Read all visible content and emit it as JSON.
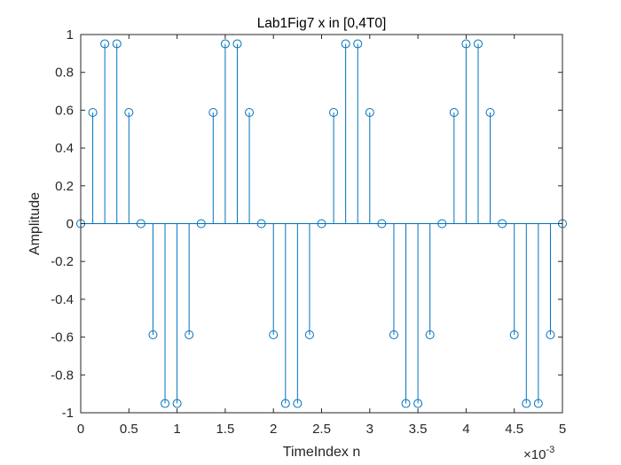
{
  "chart_data": {
    "type": "stem",
    "title": "Lab1Fig7 x in [0,4T0]",
    "xlabel": "TimeIndex n",
    "ylabel": "Amplitude",
    "x_exponent_label": "×10",
    "x_exponent_power": "-3",
    "xlim": [
      0,
      5
    ],
    "ylim": [
      -1,
      1
    ],
    "xticks": [
      0,
      0.5,
      1,
      1.5,
      2,
      2.5,
      3,
      3.5,
      4,
      4.5,
      5
    ],
    "xtick_labels": [
      "0",
      "0.5",
      "1",
      "1.5",
      "2",
      "2.5",
      "3",
      "3.5",
      "4",
      "4.5",
      "5"
    ],
    "yticks": [
      1,
      0.8,
      0.6,
      0.4,
      0.2,
      0,
      -0.2,
      -0.4,
      -0.6,
      -0.8,
      -1
    ],
    "ytick_labels": [
      "1",
      "0.8",
      "0.6",
      "0.4",
      "0.2",
      "0",
      "-0.2",
      "-0.4",
      "-0.6",
      "-0.8",
      "-1"
    ],
    "x_units_scale": 0.001,
    "x": [
      0,
      0.125,
      0.25,
      0.375,
      0.5,
      0.625,
      0.75,
      0.875,
      1,
      1.125,
      1.25,
      1.375,
      1.5,
      1.625,
      1.75,
      1.875,
      2,
      2.125,
      2.25,
      2.375,
      2.5,
      2.625,
      2.75,
      2.875,
      3,
      3.125,
      3.25,
      3.375,
      3.5,
      3.625,
      3.75,
      3.875,
      4,
      4.125,
      4.25,
      4.375,
      4.5,
      4.625,
      4.75,
      4.875,
      5
    ],
    "values": [
      0,
      0.5878,
      0.9511,
      0.9511,
      0.5878,
      0,
      -0.5878,
      -0.9511,
      -0.9511,
      -0.5878,
      0,
      0.5878,
      0.9511,
      0.9511,
      0.5878,
      0,
      -0.5878,
      -0.9511,
      -0.9511,
      -0.5878,
      0,
      0.5878,
      0.9511,
      0.9511,
      0.5878,
      0,
      -0.5878,
      -0.9511,
      -0.9511,
      -0.5878,
      0,
      0.5878,
      0.9511,
      0.9511,
      0.5878,
      0,
      -0.5878,
      -0.9511,
      -0.9511,
      -0.5878,
      0
    ],
    "series_color": "#0072BD",
    "grid": false,
    "legend": "none"
  }
}
